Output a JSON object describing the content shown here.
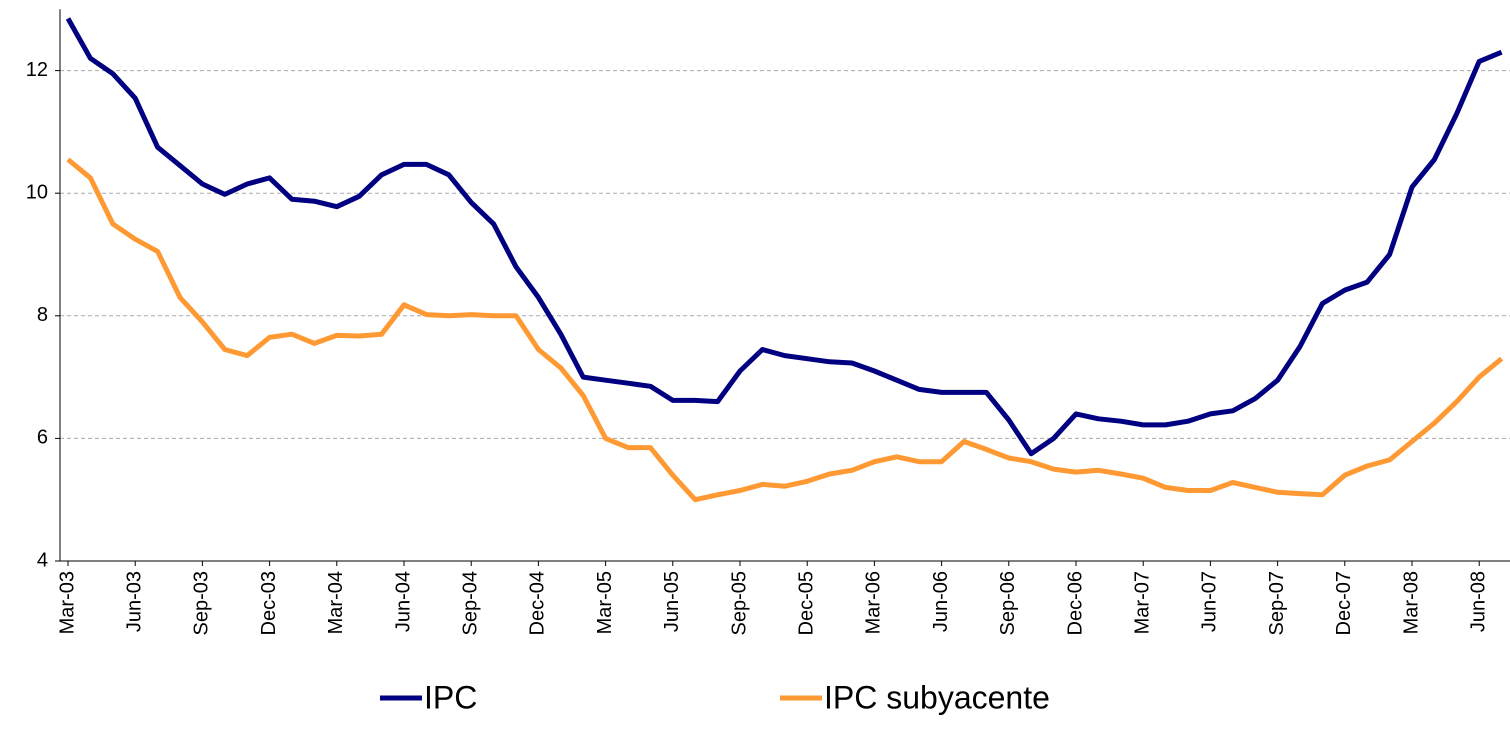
{
  "chart_data": {
    "type": "line",
    "categories": [
      "Mar-03",
      null,
      null,
      "Jun-03",
      null,
      null,
      "Sep-03",
      null,
      null,
      "Dec-03",
      null,
      null,
      "Mar-04",
      null,
      null,
      "Jun-04",
      null,
      null,
      "Sep-04",
      null,
      null,
      "Dec-04",
      null,
      null,
      "Mar-05",
      null,
      null,
      "Jun-05",
      null,
      null,
      "Sep-05",
      null,
      null,
      "Dec-05",
      null,
      null,
      "Mar-06",
      null,
      null,
      "Jun-06",
      null,
      null,
      "Sep-06",
      null,
      null,
      "Dec-06",
      null,
      null,
      "Mar-07",
      null,
      null,
      "Jun-07",
      null,
      null,
      "Sep-07",
      null,
      null,
      "Dec-07",
      null,
      null,
      "Mar-08",
      null,
      null,
      "Jun-08",
      null
    ],
    "series": [
      {
        "name": "IPC",
        "color": "#000080",
        "values": [
          12.85,
          12.2,
          11.95,
          11.55,
          10.75,
          10.45,
          10.15,
          9.98,
          10.15,
          10.25,
          9.9,
          9.87,
          9.78,
          9.95,
          10.3,
          10.47,
          10.47,
          10.3,
          9.85,
          9.5,
          8.8,
          8.3,
          7.7,
          7.0,
          6.95,
          6.9,
          6.85,
          6.62,
          6.62,
          6.6,
          7.1,
          7.45,
          7.35,
          7.3,
          7.25,
          7.23,
          7.1,
          6.95,
          6.8,
          6.75,
          6.75,
          6.75,
          6.3,
          5.75,
          6.0,
          6.4,
          6.32,
          6.28,
          6.22,
          6.22,
          6.28,
          6.4,
          6.45,
          6.65,
          6.95,
          7.5,
          8.2,
          8.42,
          8.55,
          9.0,
          10.1,
          10.55,
          11.3,
          12.15,
          12.3
        ]
      },
      {
        "name": "IPC subyacente",
        "color": "#ff9933",
        "values": [
          10.55,
          10.25,
          9.5,
          9.25,
          9.05,
          8.3,
          7.9,
          7.45,
          7.35,
          7.65,
          7.7,
          7.55,
          7.68,
          7.67,
          7.7,
          8.18,
          8.02,
          8.0,
          8.02,
          8.0,
          8.0,
          7.45,
          7.15,
          6.7,
          6.0,
          5.85,
          5.85,
          5.4,
          5.0,
          5.08,
          5.15,
          5.25,
          5.22,
          5.3,
          5.42,
          5.48,
          5.62,
          5.7,
          5.62,
          5.62,
          5.95,
          5.82,
          5.68,
          5.62,
          5.5,
          5.45,
          5.48,
          5.42,
          5.35,
          5.2,
          5.15,
          5.15,
          5.28,
          5.2,
          5.12,
          5.1,
          5.08,
          5.4,
          5.55,
          5.65,
          5.95,
          6.25,
          6.6,
          7.0,
          7.3
        ]
      }
    ],
    "ylim": [
      4,
      13
    ],
    "yticks": [
      4,
      6,
      8,
      10,
      12
    ],
    "grid": true
  }
}
